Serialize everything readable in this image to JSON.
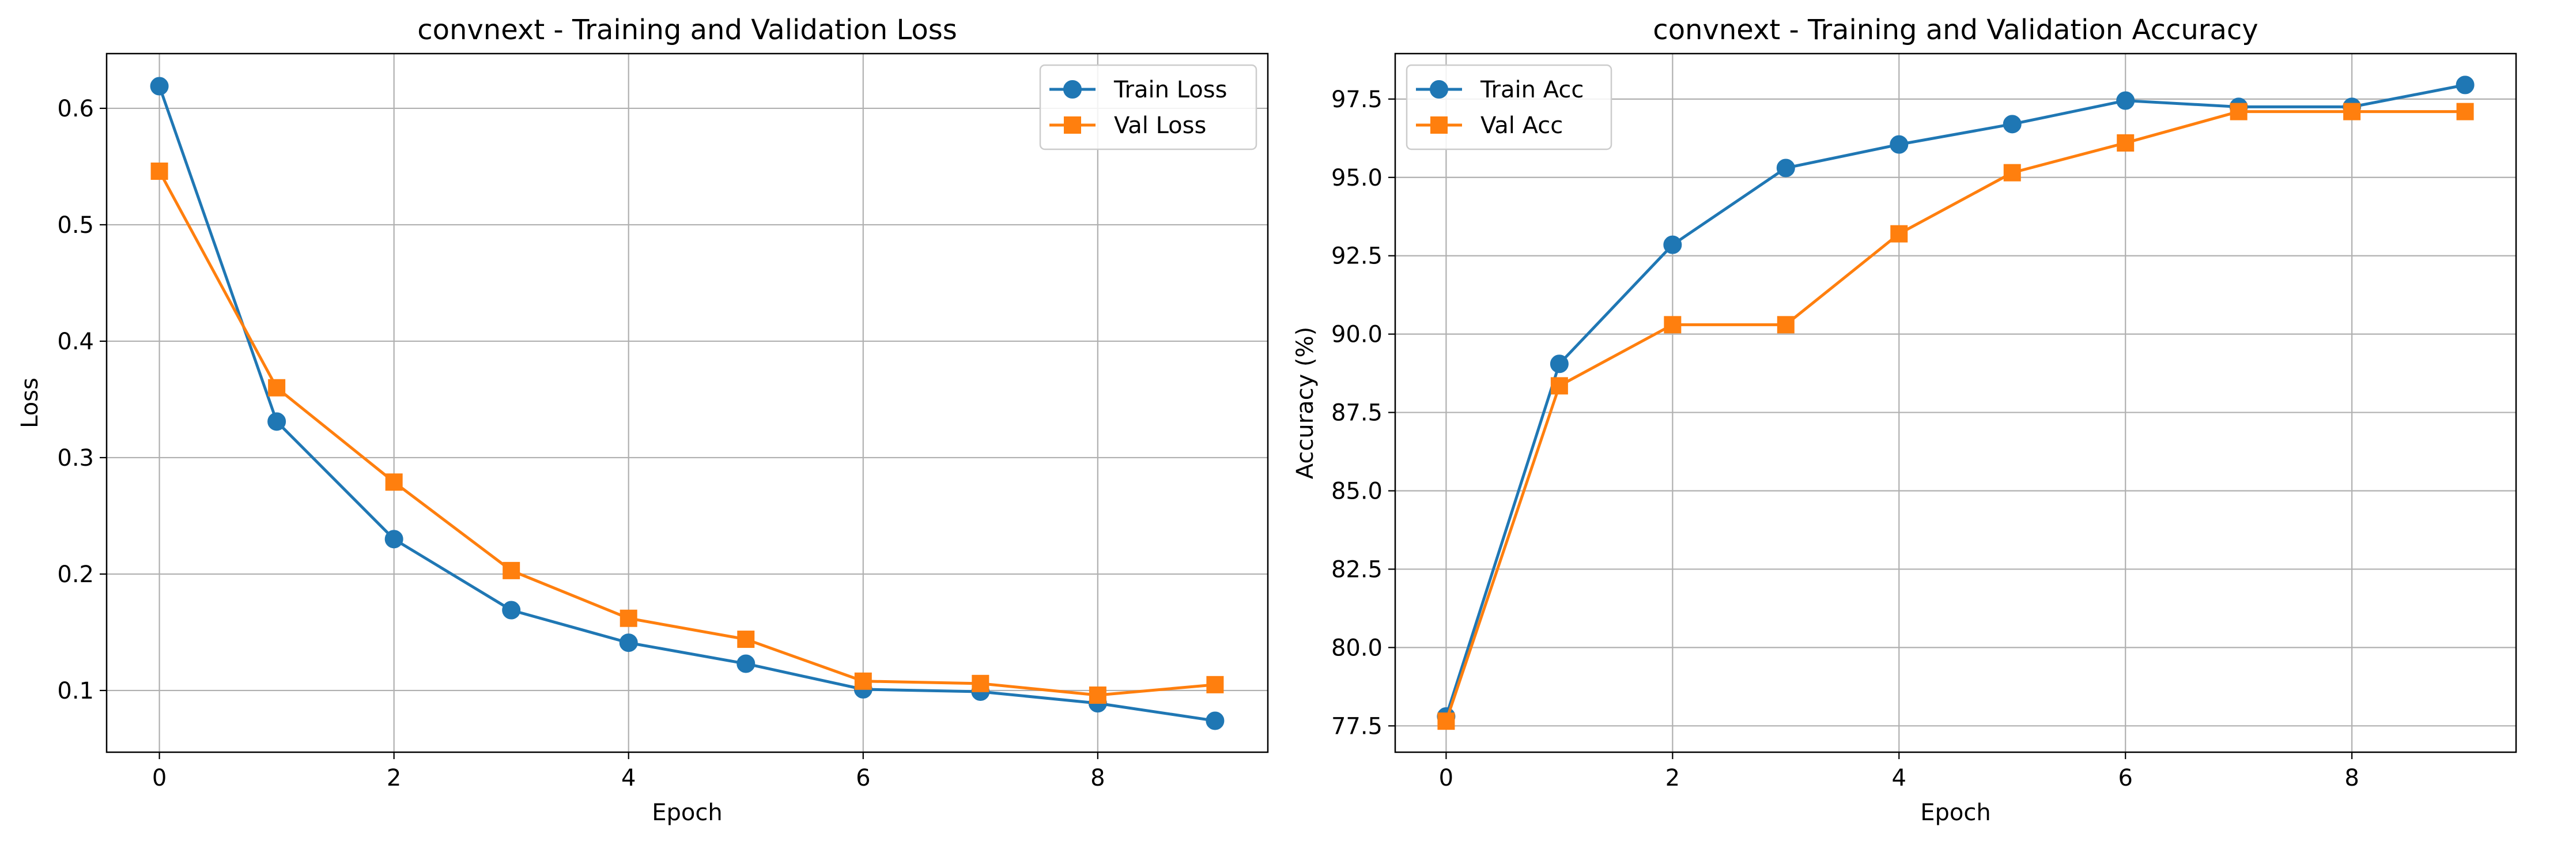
{
  "chart_data": [
    {
      "type": "line",
      "title": "convnext - Training and Validation Loss",
      "xlabel": "Epoch",
      "ylabel": "Loss",
      "x": [
        0,
        1,
        2,
        3,
        4,
        5,
        6,
        7,
        8,
        9
      ],
      "xlim": [
        -0.45,
        9.45
      ],
      "ylim": [
        0.047,
        0.647
      ],
      "xticks": [
        0,
        2,
        4,
        6,
        8
      ],
      "xtick_labels": [
        "0",
        "2",
        "4",
        "6",
        "8"
      ],
      "yticks": [
        0.1,
        0.2,
        0.3,
        0.4,
        0.5,
        0.6
      ],
      "ytick_labels": [
        "0.1",
        "0.2",
        "0.3",
        "0.4",
        "0.5",
        "0.6"
      ],
      "grid": true,
      "legend_position": "top-right",
      "series": [
        {
          "name": "Train Loss",
          "color": "#1f77b4",
          "marker": "circle",
          "values": [
            0.619,
            0.331,
            0.23,
            0.169,
            0.141,
            0.123,
            0.101,
            0.099,
            0.089,
            0.074
          ]
        },
        {
          "name": "Val Loss",
          "color": "#ff7f0e",
          "marker": "square",
          "values": [
            0.546,
            0.36,
            0.279,
            0.203,
            0.162,
            0.144,
            0.108,
            0.106,
            0.096,
            0.105
          ]
        }
      ]
    },
    {
      "type": "line",
      "title": "convnext - Training and Validation Accuracy",
      "xlabel": "Epoch",
      "ylabel": "Accuracy (%)",
      "x": [
        0,
        1,
        2,
        3,
        4,
        5,
        6,
        7,
        8,
        9
      ],
      "xlim": [
        -0.45,
        9.45
      ],
      "ylim": [
        76.66,
        98.95
      ],
      "xticks": [
        0,
        2,
        4,
        6,
        8
      ],
      "xtick_labels": [
        "0",
        "2",
        "4",
        "6",
        "8"
      ],
      "yticks": [
        77.5,
        80.0,
        82.5,
        85.0,
        87.5,
        90.0,
        92.5,
        95.0,
        97.5
      ],
      "ytick_labels": [
        "77.5",
        "80.0",
        "82.5",
        "85.0",
        "87.5",
        "90.0",
        "92.5",
        "95.0",
        "97.5"
      ],
      "grid": true,
      "legend_position": "top-left",
      "series": [
        {
          "name": "Train Acc",
          "color": "#1f77b4",
          "marker": "circle",
          "values": [
            77.8,
            89.05,
            92.85,
            95.3,
            96.05,
            96.7,
            97.45,
            97.25,
            97.25,
            97.95
          ]
        },
        {
          "name": "Val Acc",
          "color": "#ff7f0e",
          "marker": "square",
          "values": [
            77.65,
            88.35,
            90.3,
            90.3,
            93.2,
            95.15,
            96.1,
            97.1,
            97.1,
            97.1
          ]
        }
      ]
    }
  ]
}
